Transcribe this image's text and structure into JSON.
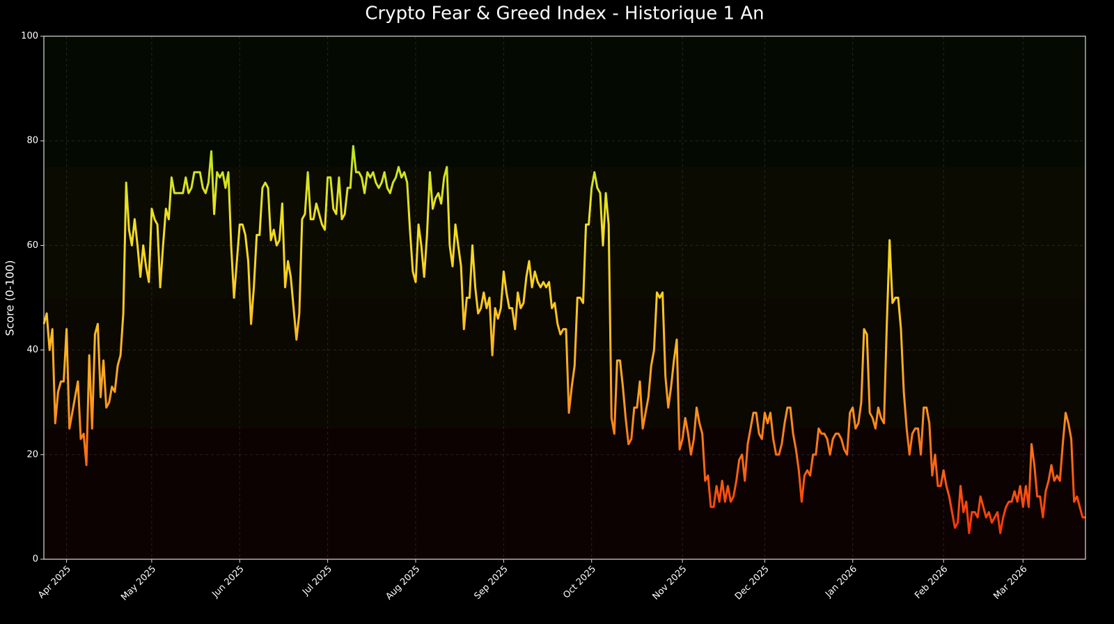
{
  "chart_data": {
    "type": "line",
    "title": "Crypto Fear & Greed Index - Historique 1 An",
    "ylabel": "Score (0-100)",
    "x": [
      0,
      1,
      2,
      3,
      4,
      5,
      6,
      7,
      8,
      9,
      10,
      11,
      12,
      13,
      14,
      15,
      16,
      17,
      18,
      19,
      20,
      21,
      22,
      23,
      24,
      25,
      26,
      27,
      28,
      29,
      30,
      31,
      32,
      33,
      34,
      35,
      36,
      37,
      38,
      39,
      40,
      41,
      42,
      43,
      44,
      45,
      46,
      47,
      48,
      49,
      50,
      51,
      52,
      53,
      54,
      55,
      56,
      57,
      58,
      59,
      60,
      61,
      62,
      63,
      64,
      65,
      66,
      67,
      68,
      69,
      70,
      71,
      72,
      73,
      74,
      75,
      76,
      77,
      78,
      79,
      80,
      81,
      82,
      83,
      84,
      85,
      86,
      87,
      88,
      89,
      90,
      91,
      92,
      93,
      94,
      95,
      96,
      97,
      98,
      99,
      100,
      101,
      102,
      103,
      104,
      105,
      106,
      107,
      108,
      109,
      110,
      111,
      112,
      113,
      114,
      115,
      116,
      117,
      118,
      119,
      120,
      121,
      122,
      123,
      124,
      125,
      126,
      127,
      128,
      129,
      130,
      131,
      132,
      133,
      134,
      135,
      136,
      137,
      138,
      139,
      140,
      141,
      142,
      143,
      144,
      145,
      146,
      147,
      148,
      149,
      150,
      151,
      152,
      153,
      154,
      155,
      156,
      157,
      158,
      159,
      160,
      161,
      162,
      163,
      164,
      165,
      166,
      167,
      168,
      169,
      170,
      171,
      172,
      173,
      174,
      175,
      176,
      177,
      178,
      179,
      180,
      181,
      182,
      183,
      184,
      185,
      186,
      187,
      188,
      189,
      190,
      191,
      192,
      193,
      194,
      195,
      196,
      197,
      198,
      199,
      200,
      201,
      202,
      203,
      204,
      205,
      206,
      207,
      208,
      209,
      210,
      211,
      212,
      213,
      214,
      215,
      216,
      217,
      218,
      219,
      220,
      221,
      222,
      223,
      224,
      225,
      226,
      227,
      228,
      229,
      230,
      231,
      232,
      233,
      234,
      235,
      236,
      237,
      238,
      239,
      240,
      241,
      242,
      243,
      244,
      245,
      246,
      247,
      248,
      249,
      250,
      251,
      252,
      253,
      254,
      255,
      256,
      257,
      258,
      259,
      260,
      261,
      262,
      263,
      264,
      265,
      266,
      267,
      268,
      269,
      270,
      271,
      272,
      273,
      274,
      275,
      276,
      277,
      278,
      279,
      280,
      281,
      282,
      283,
      284,
      285,
      286,
      287,
      288,
      289,
      290,
      291,
      292,
      293,
      294,
      295,
      296,
      297,
      298,
      299,
      300,
      301,
      302,
      303,
      304,
      305,
      306,
      307,
      308,
      309,
      310,
      311,
      312,
      313,
      314,
      315,
      316,
      317,
      318,
      319,
      320,
      321,
      322,
      323,
      324,
      325,
      326,
      327,
      328,
      329,
      330,
      331,
      332,
      333,
      334,
      335,
      336,
      337,
      338,
      339,
      340,
      341,
      342,
      343,
      344,
      345,
      346,
      347,
      348,
      349,
      350,
      351,
      352,
      353,
      354,
      355,
      356,
      357,
      358,
      359,
      360,
      361,
      362,
      363,
      364,
      365,
      366,
      367
    ],
    "values": [
      45,
      47,
      40,
      44,
      26,
      32,
      34,
      34,
      44,
      25,
      28,
      31,
      34,
      23,
      24,
      18,
      39,
      25,
      43,
      45,
      31,
      38,
      29,
      30,
      33,
      32,
      37,
      39,
      47,
      72,
      63,
      60,
      65,
      60,
      54,
      60,
      56,
      53,
      67,
      65,
      64,
      52,
      60,
      67,
      65,
      73,
      70,
      70,
      70,
      70,
      73,
      70,
      71,
      74,
      74,
      74,
      71,
      70,
      72,
      78,
      66,
      74,
      73,
      74,
      71,
      74,
      60,
      50,
      57,
      64,
      64,
      62,
      57,
      45,
      52,
      62,
      62,
      71,
      72,
      71,
      61,
      63,
      60,
      61,
      68,
      52,
      57,
      54,
      48,
      42,
      47,
      65,
      66,
      74,
      65,
      65,
      68,
      66,
      64,
      63,
      73,
      73,
      67,
      66,
      73,
      65,
      66,
      71,
      71,
      79,
      74,
      74,
      73,
      70,
      74,
      73,
      74,
      72,
      71,
      72,
      74,
      71,
      70,
      72,
      73,
      75,
      73,
      74,
      72,
      63,
      55,
      53,
      64,
      60,
      54,
      62,
      74,
      67,
      69,
      70,
      68,
      73,
      75,
      60,
      56,
      64,
      60,
      56,
      44,
      50,
      50,
      60,
      52,
      47,
      48,
      51,
      48,
      50,
      39,
      48,
      46,
      48,
      55,
      51,
      48,
      48,
      44,
      51,
      48,
      49,
      54,
      57,
      52,
      55,
      53,
      52,
      53,
      52,
      53,
      48,
      49,
      45,
      43,
      44,
      44,
      28,
      33,
      37,
      50,
      50,
      49,
      64,
      64,
      71,
      74,
      71,
      70,
      60,
      70,
      64,
      27,
      24,
      38,
      38,
      33,
      27,
      22,
      23,
      29,
      29,
      34,
      25,
      28,
      31,
      37,
      40,
      51,
      50,
      51,
      35,
      29,
      33,
      38,
      42,
      21,
      23,
      27,
      24,
      20,
      23,
      29,
      26,
      24,
      15,
      16,
      10,
      10,
      14,
      11,
      15,
      11,
      14,
      11,
      12,
      15,
      19,
      20,
      15,
      22,
      25,
      28,
      28,
      24,
      23,
      28,
      26,
      28,
      23,
      20,
      20,
      22,
      26,
      29,
      29,
      24,
      21,
      17,
      11,
      16,
      17,
      16,
      20,
      20,
      25,
      24,
      24,
      23,
      20,
      23,
      24,
      24,
      23,
      21,
      20,
      28,
      29,
      25,
      26,
      30,
      44,
      43,
      28,
      27,
      25,
      29,
      27,
      26,
      45,
      61,
      49,
      50,
      50,
      44,
      32,
      25,
      20,
      24,
      25,
      25,
      20,
      29,
      29,
      26,
      16,
      20,
      14,
      14,
      17,
      14,
      12,
      9,
      6,
      7,
      14,
      9,
      11,
      5,
      9,
      9,
      8,
      12,
      10,
      8,
      9,
      7,
      8,
      9,
      5,
      8,
      10,
      11,
      11,
      13,
      11,
      14,
      10,
      14,
      10,
      22,
      18,
      12,
      12,
      8,
      13,
      15,
      18,
      15,
      16,
      15,
      22,
      28,
      26,
      23,
      11,
      12,
      10,
      8,
      8
    ],
    "xlim": [
      0,
      367
    ],
    "xticks": [
      {
        "value": 8,
        "label": "Apr 2025"
      },
      {
        "value": 38,
        "label": "May 2025"
      },
      {
        "value": 69,
        "label": "Jun 2025"
      },
      {
        "value": 100,
        "label": "Jul 2025"
      },
      {
        "value": 131,
        "label": "Aug 2025"
      },
      {
        "value": 162,
        "label": "Sep 2025"
      },
      {
        "value": 193,
        "label": "Oct 2025"
      },
      {
        "value": 225,
        "label": "Nov 2025"
      },
      {
        "value": 254,
        "label": "Dec 2025"
      },
      {
        "value": 285,
        "label": "Jan 2026"
      },
      {
        "value": 317,
        "label": "Feb 2026"
      },
      {
        "value": 345,
        "label": "Mar 2026"
      }
    ],
    "ylim": [
      0,
      100
    ],
    "yticks": [
      0,
      20,
      40,
      60,
      80,
      100
    ],
    "grid": true
  }
}
